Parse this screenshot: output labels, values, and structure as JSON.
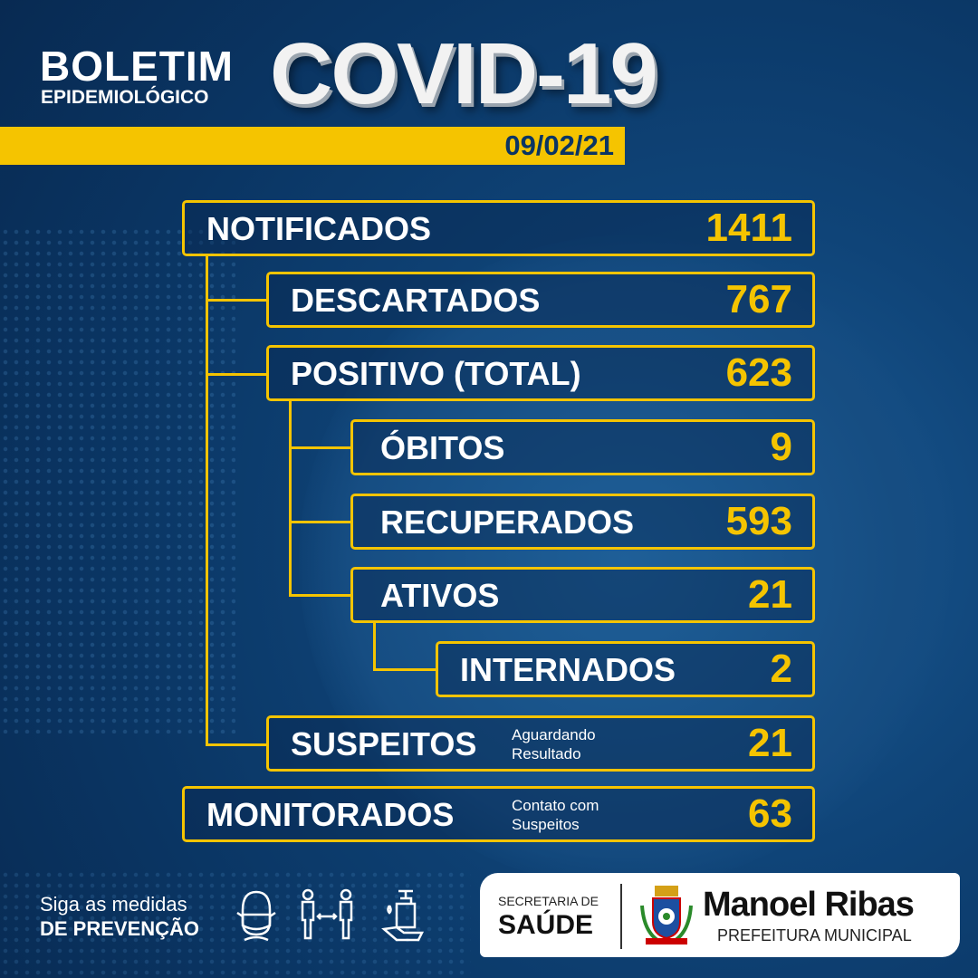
{
  "header": {
    "title_line1": "BOLETIM",
    "title_line2": "EPIDEMIOLÓGICO",
    "title_main": "COVID-19",
    "date": "09/02/21"
  },
  "stats": [
    {
      "label": "NOTIFICADOS",
      "value": "1411"
    },
    {
      "label": "DESCARTADOS",
      "value": "767"
    },
    {
      "label": "POSITIVO (TOTAL)",
      "value": "623"
    },
    {
      "label": "ÓBITOS",
      "value": "9"
    },
    {
      "label": "RECUPERADOS",
      "value": "593"
    },
    {
      "label": "ATIVOS",
      "value": "21"
    },
    {
      "label": "INTERNADOS",
      "value": "2"
    },
    {
      "label": "SUSPEITOS",
      "value": "21",
      "note_line1": "Aguardando",
      "note_line2": "Resultado"
    },
    {
      "label": "MONITORADOS",
      "value": "63",
      "note_line1": "Contato com",
      "note_line2": "Suspeitos"
    }
  ],
  "colors": {
    "accent": "#f5c400",
    "background": "#0a3563"
  },
  "footer": {
    "line1": "Siga as medidas",
    "line2": "DE PREVENÇÃO",
    "icons": [
      "face-mask-icon",
      "social-distance-icon",
      "hand-sanitizer-icon"
    ],
    "secretaria_line1": "SECRETARIA DE",
    "secretaria_line2": "SAÚDE",
    "city": "Manoel Ribas",
    "city_sub": "PREFEITURA MUNICIPAL"
  }
}
